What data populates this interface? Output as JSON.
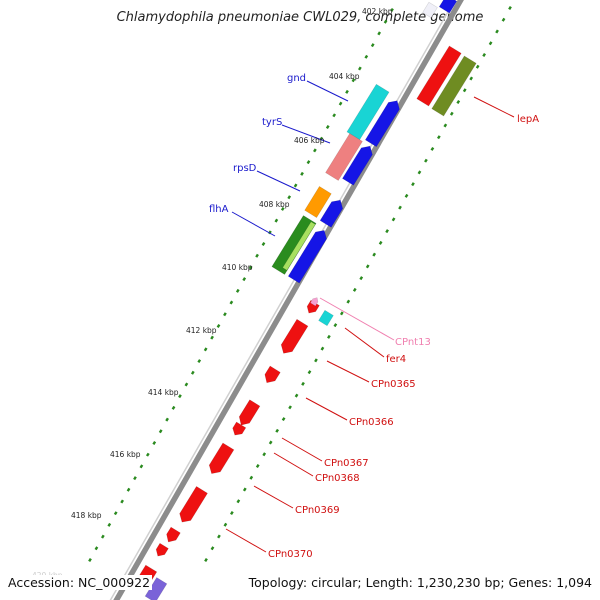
{
  "title": "Chlamydophila pneumoniae CWL029, complete genome",
  "footer": {
    "accession": "Accession: NC_000922",
    "summary": "Topology: circular; Length: 1,230,230 bp; Genes: 1,094"
  },
  "ticks": [
    "402 kbp",
    "404 kbp",
    "406 kbp",
    "408 kbp",
    "410 kbp",
    "412 kbp",
    "414 kbp",
    "416 kbp",
    "418 kbp",
    "420 kbp"
  ],
  "gene_labels": {
    "gnd": "gnd",
    "tyrS": "tyrS",
    "rpsD": "rpsD",
    "flhA": "flhA",
    "lepA": "lepA",
    "CPnt13": "CPnt13",
    "fer4": "fer4",
    "CPn0365": "CPn0365",
    "CPn0366": "CPn0366",
    "CPn0367": "CPn0367",
    "CPn0368": "CPn0368",
    "CPn0369": "CPn0369",
    "CPn0370": "CPn0370"
  },
  "colors": {
    "backbone": "#8c8c8c",
    "tick_dots": "#2a8a1f",
    "label_blue": "#1a1acc",
    "label_red": "#d01010",
    "label_pink": "#f080b0",
    "gene_blue": "#1515e6",
    "gene_red": "#ee1111",
    "gene_cyan": "#19d4d4",
    "gene_salmon": "#ee8080",
    "gene_orange": "#ff9a00",
    "gene_green": "#2a8c1e",
    "gene_lime": "#a8e060",
    "gene_olive": "#6f8c22",
    "gene_purple": "#7a63d8",
    "gene_pink": "#f5a0d0"
  }
}
